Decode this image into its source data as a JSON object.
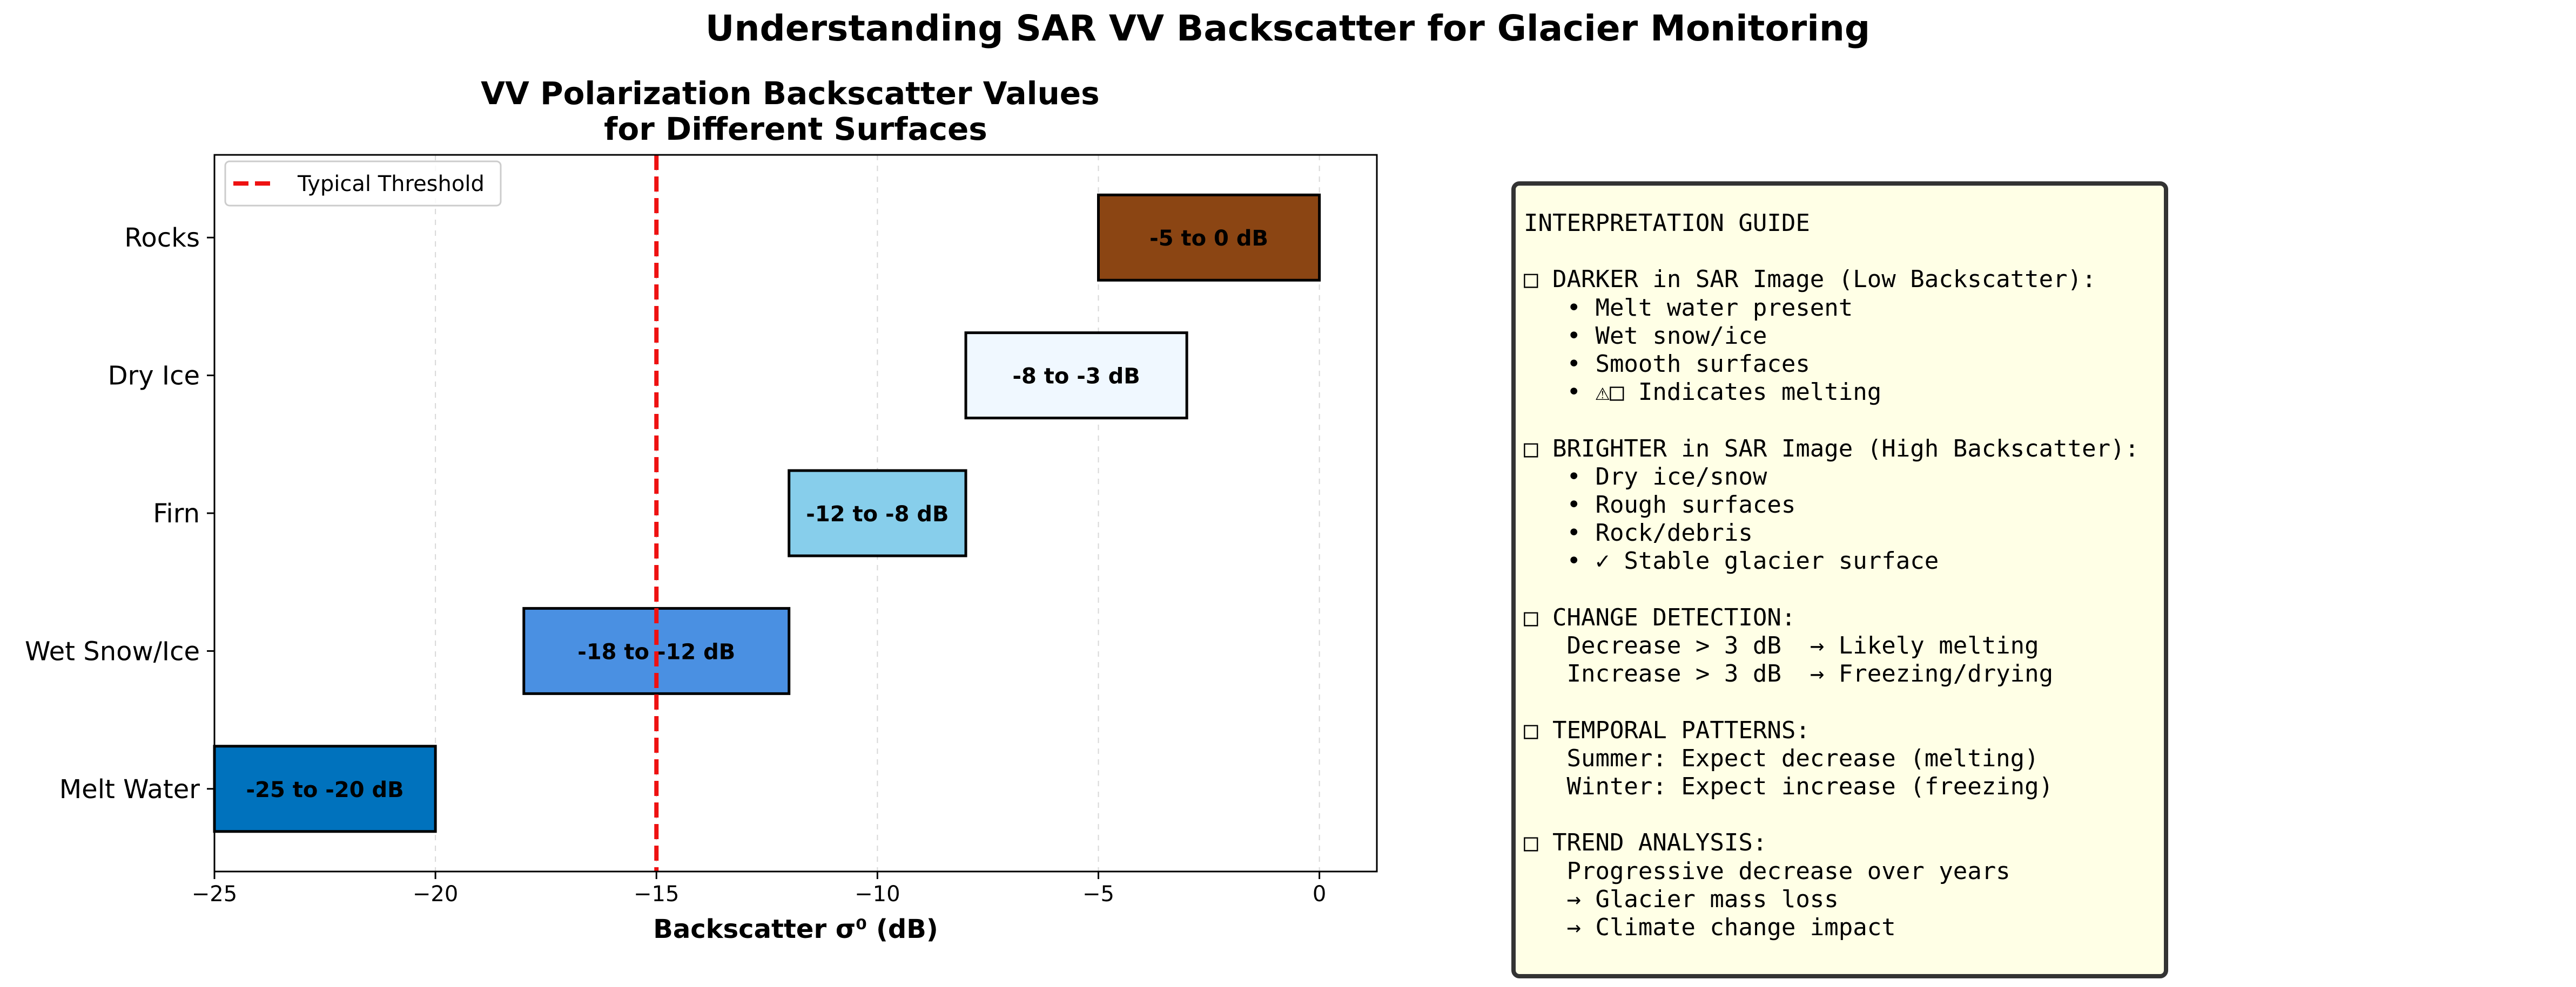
{
  "figure_title": "Understanding SAR VV Backscatter for Glacier Monitoring",
  "chart_data": {
    "type": "bar",
    "orientation": "horizontal-range",
    "title": "VV Polarization Backscatter Values\nfor Different Surfaces",
    "xlabel": "Backscatter σ⁰ (dB)",
    "ylabel": "",
    "xlim": [
      -25,
      1.3
    ],
    "xticks": [
      -25,
      -20,
      -15,
      -10,
      -5,
      0
    ],
    "xtick_labels": [
      "−25",
      "−20",
      "−15",
      "−10",
      "−5",
      "0"
    ],
    "grid": "x-axis, dashed",
    "categories": [
      "Melt Water",
      "Wet Snow/Ice",
      "Firn",
      "Dry Ice",
      "Rocks"
    ],
    "ranges": [
      [
        -25,
        -20
      ],
      [
        -18,
        -12
      ],
      [
        -12,
        -8
      ],
      [
        -8,
        -3
      ],
      [
        -5,
        0
      ]
    ],
    "labels": [
      "-25 to -20 dB",
      "-18 to -12 dB",
      "-12 to -8 dB",
      "-8 to -3 dB",
      "-5 to 0 dB"
    ],
    "colors": [
      "#0072bd",
      "#4a90e2",
      "#87ceeb",
      "#f0f8ff",
      "#8b4513"
    ],
    "threshold": {
      "value": -15,
      "label": "Typical Threshold",
      "color": "#ee1111"
    },
    "legend_position": "top-left"
  },
  "guide": {
    "lines": [
      "INTERPRETATION GUIDE",
      "",
      "□ DARKER in SAR Image (Low Backscatter):",
      "   • Melt water present",
      "   • Wet snow/ice",
      "   • Smooth surfaces",
      "   • ⚠□ Indicates melting",
      "",
      "□ BRIGHTER in SAR Image (High Backscatter):",
      "   • Dry ice/snow",
      "   • Rough surfaces",
      "   • Rock/debris",
      "   • ✓ Stable glacier surface",
      "",
      "□ CHANGE DETECTION:",
      "   Decrease > 3 dB  → Likely melting",
      "   Increase > 3 dB  → Freezing/drying",
      "",
      "□ TEMPORAL PATTERNS:",
      "   Summer: Expect decrease (melting)",
      "   Winter: Expect increase (freezing)",
      "",
      "□ TREND ANALYSIS:",
      "   Progressive decrease over years",
      "   → Glacier mass loss",
      "   → Climate change impact"
    ]
  }
}
